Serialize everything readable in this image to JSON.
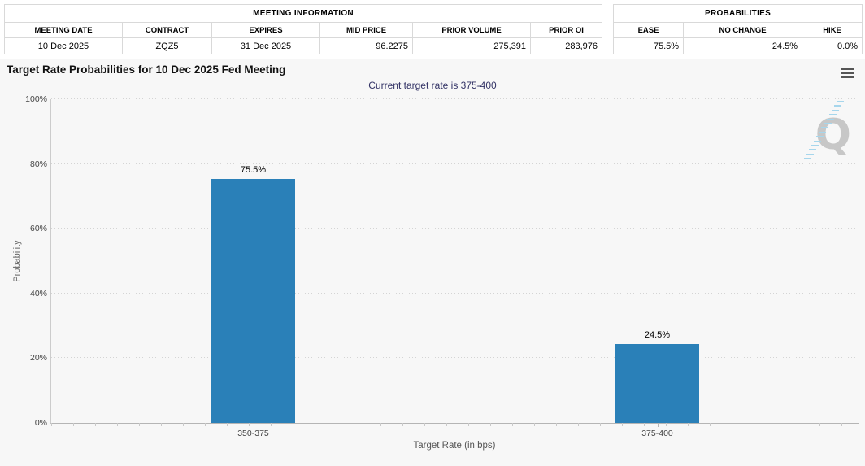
{
  "meeting_information": {
    "title": "MEETING INFORMATION",
    "columns": [
      "MEETING DATE",
      "CONTRACT",
      "EXPIRES",
      "MID PRICE",
      "PRIOR VOLUME",
      "PRIOR OI"
    ],
    "values": [
      "10 Dec 2025",
      "ZQZ5",
      "31 Dec 2025",
      "96.2275",
      "275,391",
      "283,976"
    ]
  },
  "probabilities": {
    "title": "PROBABILITIES",
    "columns": [
      "EASE",
      "NO CHANGE",
      "HIKE"
    ],
    "values": [
      "75.5%",
      "24.5%",
      "0.0%"
    ]
  },
  "chart": {
    "title": "Target Rate Probabilities for 10 Dec 2025 Fed Meeting",
    "subtitle": "Current target rate is 375-400",
    "menu_icon": "hamburger-menu-icon",
    "watermark_letter": "Q"
  },
  "chart_data": {
    "type": "bar",
    "categories": [
      "350-375",
      "375-400"
    ],
    "values": [
      75.5,
      24.5
    ],
    "data_labels": [
      "75.5%",
      "24.5%"
    ],
    "title": "Target Rate Probabilities for 10 Dec 2025 Fed Meeting",
    "subtitle": "Current target rate is 375-400",
    "xlabel": "Target Rate (in bps)",
    "ylabel": "Probability",
    "ylim": [
      0,
      100
    ],
    "ytick_labels": [
      "0%",
      "20%",
      "40%",
      "60%",
      "80%",
      "100%"
    ],
    "grid": "dotted-horizontal",
    "legend": "none",
    "bar_color": "#2a80b8"
  },
  "colors": {
    "panel_bg": "#f7f7f7",
    "bar": "#2a80b8",
    "subtitle_text": "#333366",
    "grid_dot": "#d4d4d4"
  }
}
